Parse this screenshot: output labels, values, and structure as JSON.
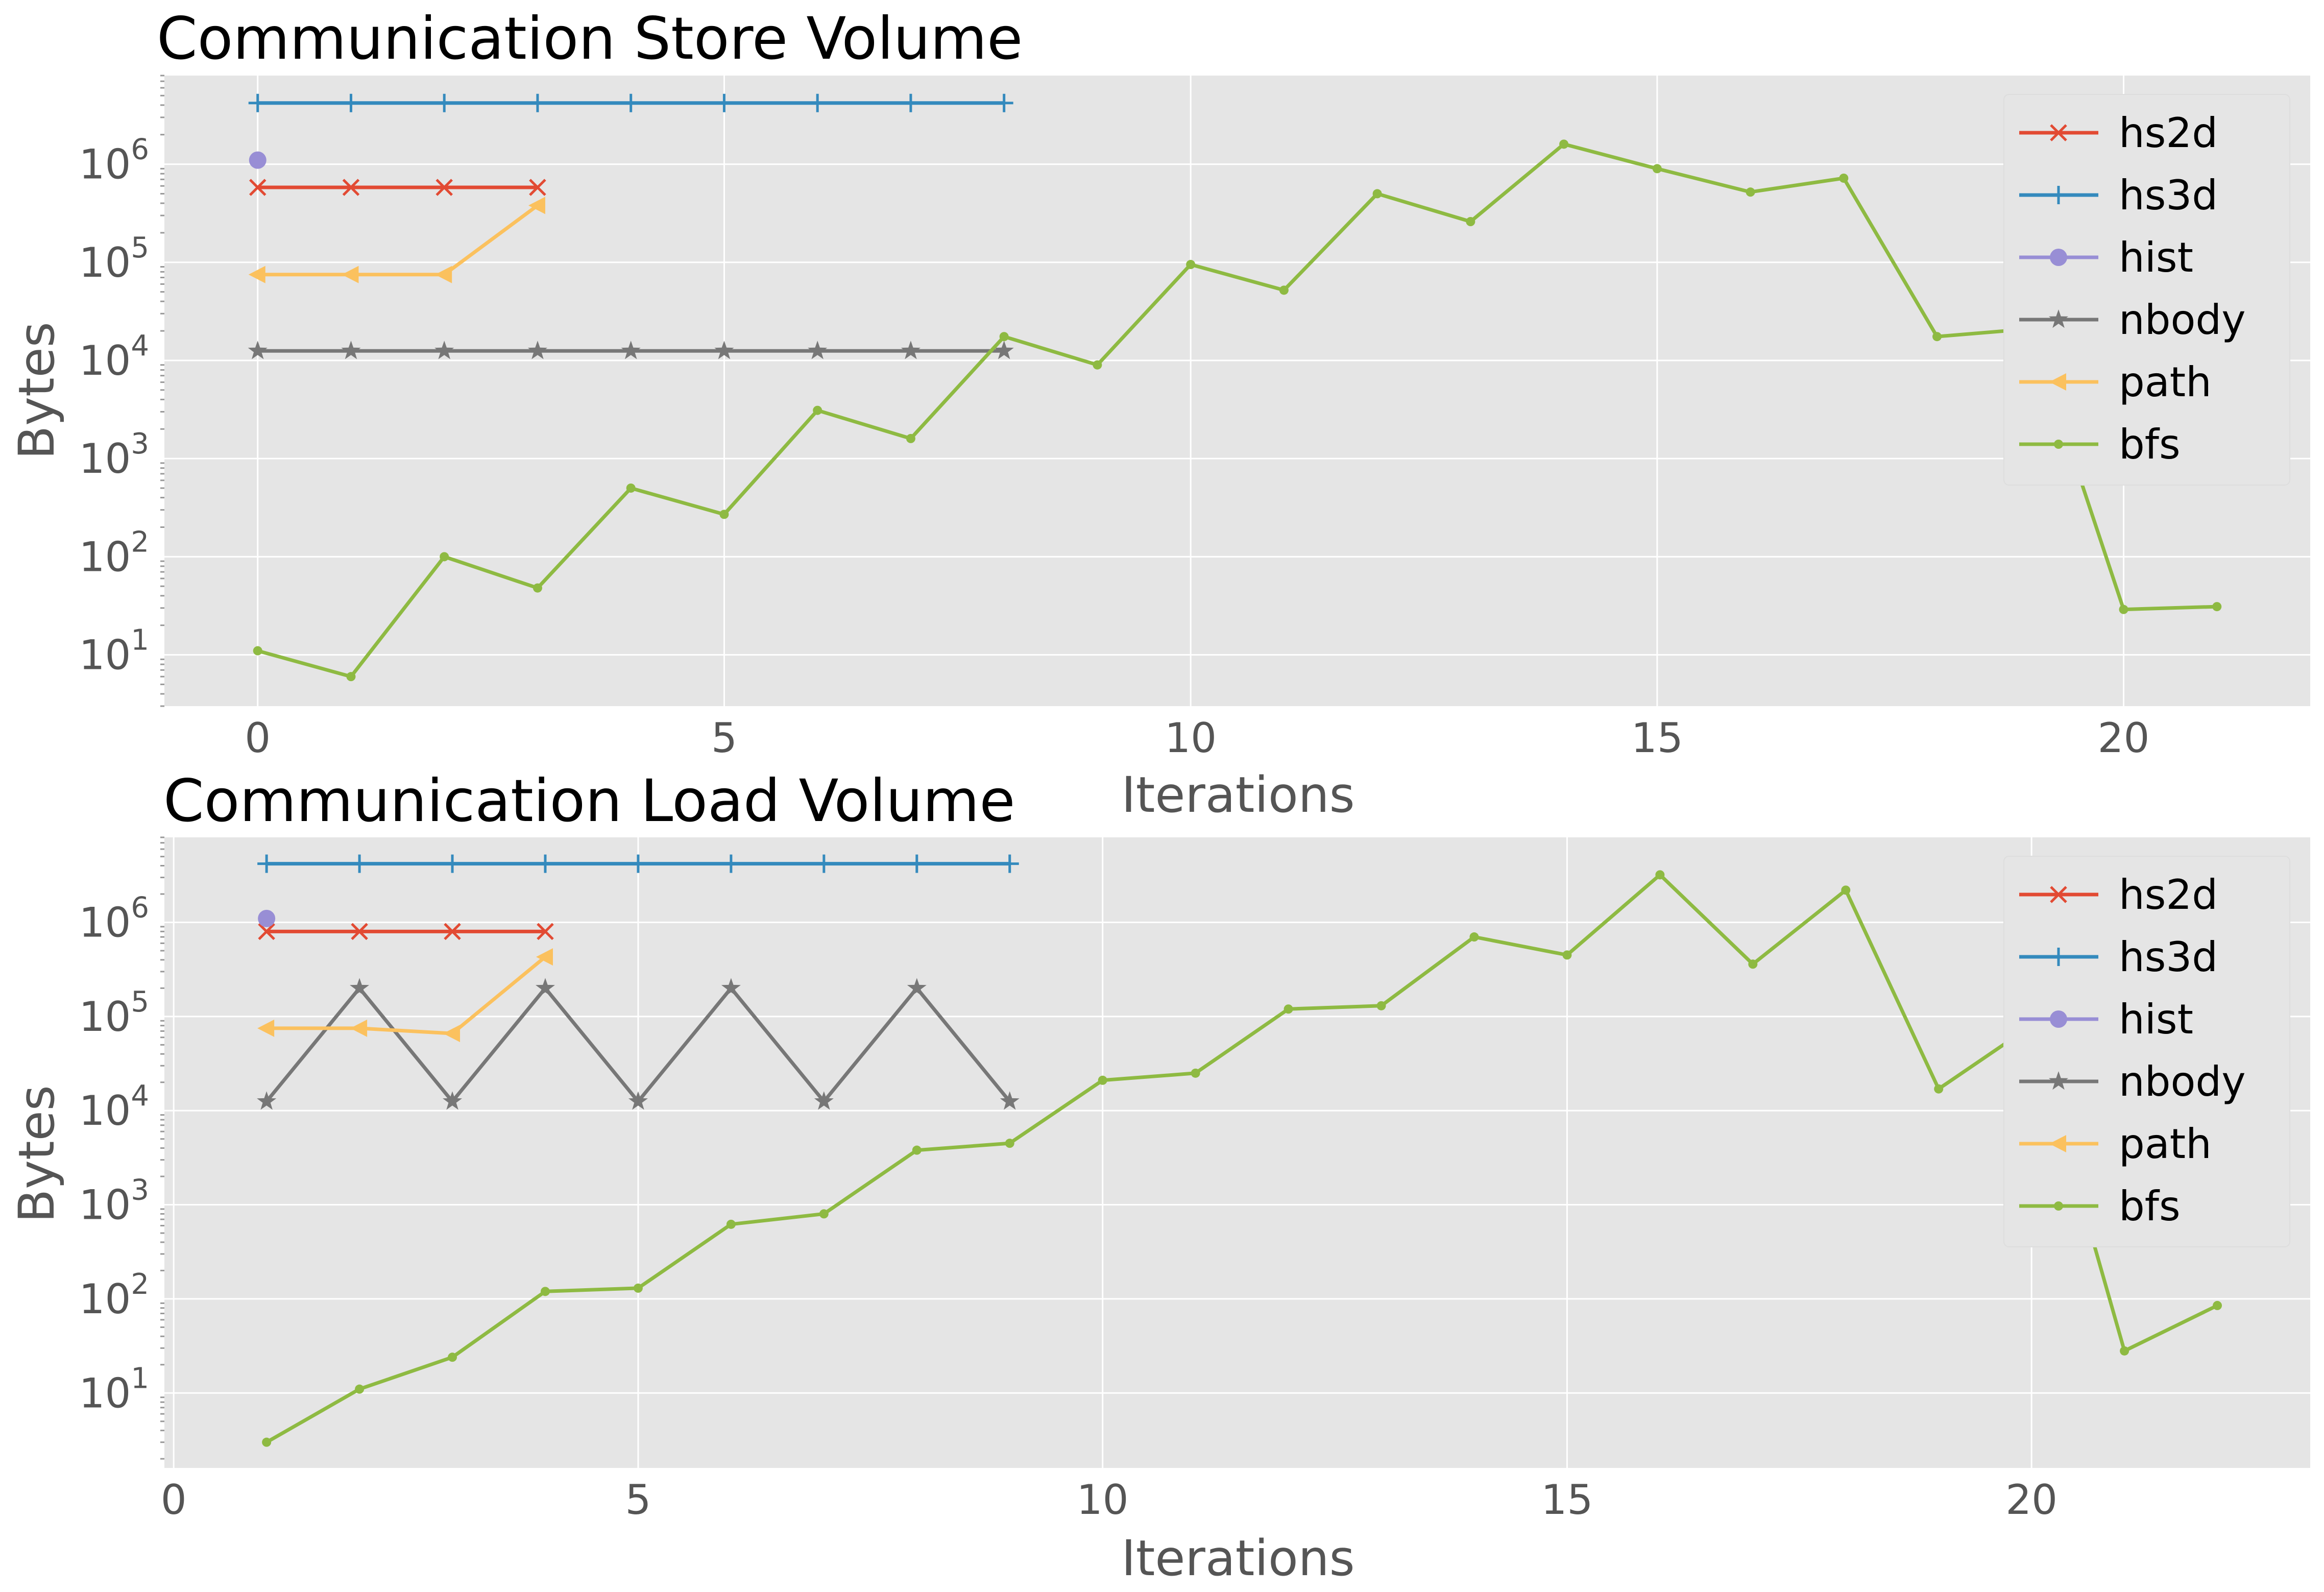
{
  "colors": {
    "hs2d": "#E24A33",
    "hs3d": "#348ABD",
    "hist": "#988ED5",
    "nbody": "#777777",
    "path": "#FBC15E",
    "bfs": "#8EBA42",
    "plot_background": "#E5E5E5",
    "grid": "#FFFFFF"
  },
  "chart_data": [
    {
      "type": "line",
      "title": "Communication Store Volume",
      "xlabel": "Iterations",
      "ylabel": "Bytes",
      "yscale": "log",
      "xlim": [
        -1,
        22
      ],
      "ylim": [
        3,
        8000000
      ],
      "xticks": [
        0,
        5,
        10,
        15,
        20
      ],
      "xtick_labels": [
        "0",
        "5",
        "10",
        "15",
        "20"
      ],
      "yticks": [
        10,
        100,
        1000,
        10000,
        100000,
        1000000
      ],
      "ytick_labels": [
        {
          "base": "10",
          "exp": "1"
        },
        {
          "base": "10",
          "exp": "2"
        },
        {
          "base": "10",
          "exp": "3"
        },
        {
          "base": "10",
          "exp": "4"
        },
        {
          "base": "10",
          "exp": "5"
        },
        {
          "base": "10",
          "exp": "6"
        }
      ],
      "grid": true,
      "legend_position": "upper right",
      "series": [
        {
          "name": "hs2d",
          "marker": "x",
          "x": [
            0,
            1,
            2,
            3
          ],
          "y": [
            580000,
            580000,
            580000,
            580000
          ]
        },
        {
          "name": "hs3d",
          "marker": "plus",
          "x": [
            0,
            1,
            2,
            3,
            4,
            5,
            6,
            7,
            8
          ],
          "y": [
            4200000,
            4200000,
            4200000,
            4200000,
            4200000,
            4200000,
            4200000,
            4200000,
            4200000
          ]
        },
        {
          "name": "hist",
          "marker": "circle",
          "x": [
            0
          ],
          "y": [
            1100000
          ]
        },
        {
          "name": "nbody",
          "marker": "star",
          "x": [
            0,
            1,
            2,
            3,
            4,
            5,
            6,
            7,
            8
          ],
          "y": [
            12500,
            12500,
            12500,
            12500,
            12500,
            12500,
            12500,
            12500,
            12500
          ]
        },
        {
          "name": "path",
          "marker": "triangle-left",
          "x": [
            0,
            1,
            2,
            3
          ],
          "y": [
            75000,
            75000,
            75000,
            380000
          ]
        },
        {
          "name": "bfs",
          "marker": "dot",
          "x": [
            0,
            1,
            2,
            3,
            4,
            5,
            6,
            7,
            8,
            9,
            10,
            11,
            12,
            13,
            14,
            15,
            16,
            17,
            18,
            19,
            20,
            21
          ],
          "y": [
            11,
            6,
            100,
            48,
            500,
            270,
            3100,
            1600,
            17500,
            9000,
            95000,
            52000,
            500000,
            260000,
            1600000,
            900000,
            520000,
            720000,
            17500,
            21000,
            29,
            31
          ]
        }
      ]
    },
    {
      "type": "line",
      "title": "Communication Load Volume",
      "xlabel": "Iterations",
      "ylabel": "Bytes",
      "yscale": "log",
      "xlim": [
        -0.1,
        23
      ],
      "ylim": [
        1.6,
        8000000
      ],
      "xticks": [
        0,
        5,
        10,
        15,
        20
      ],
      "xtick_labels": [
        "0",
        "5",
        "10",
        "15",
        "20"
      ],
      "yticks": [
        10,
        100,
        1000,
        10000,
        100000,
        1000000
      ],
      "ytick_labels": [
        {
          "base": "10",
          "exp": "1"
        },
        {
          "base": "10",
          "exp": "2"
        },
        {
          "base": "10",
          "exp": "3"
        },
        {
          "base": "10",
          "exp": "4"
        },
        {
          "base": "10",
          "exp": "5"
        },
        {
          "base": "10",
          "exp": "6"
        }
      ],
      "grid": true,
      "legend_position": "upper right",
      "series": [
        {
          "name": "hs2d",
          "marker": "x",
          "x": [
            1,
            2,
            3,
            4
          ],
          "y": [
            800000,
            800000,
            800000,
            800000
          ]
        },
        {
          "name": "hs3d",
          "marker": "plus",
          "x": [
            1,
            2,
            3,
            4,
            5,
            6,
            7,
            8,
            9
          ],
          "y": [
            4200000,
            4200000,
            4200000,
            4200000,
            4200000,
            4200000,
            4200000,
            4200000,
            4200000
          ]
        },
        {
          "name": "hist",
          "marker": "circle",
          "x": [
            1
          ],
          "y": [
            1100000
          ]
        },
        {
          "name": "nbody",
          "marker": "star",
          "x": [
            1,
            2,
            3,
            4,
            5,
            6,
            7,
            8,
            9
          ],
          "y": [
            12500,
            200000,
            12500,
            200000,
            12500,
            200000,
            12500,
            200000,
            12500
          ]
        },
        {
          "name": "path",
          "marker": "triangle-left",
          "x": [
            1,
            2,
            3,
            4
          ],
          "y": [
            75000,
            75000,
            66000,
            430000
          ]
        },
        {
          "name": "bfs",
          "marker": "dot",
          "x": [
            1,
            2,
            3,
            4,
            5,
            6,
            7,
            8,
            9,
            10,
            11,
            12,
            13,
            14,
            15,
            16,
            17,
            18,
            19,
            20,
            21,
            22
          ],
          "y": [
            3,
            11,
            24,
            120,
            130,
            620,
            800,
            3800,
            4500,
            21000,
            25000,
            120000,
            130000,
            700000,
            450000,
            3200000,
            360000,
            2200000,
            17000,
            80000,
            28,
            85
          ]
        }
      ]
    }
  ]
}
